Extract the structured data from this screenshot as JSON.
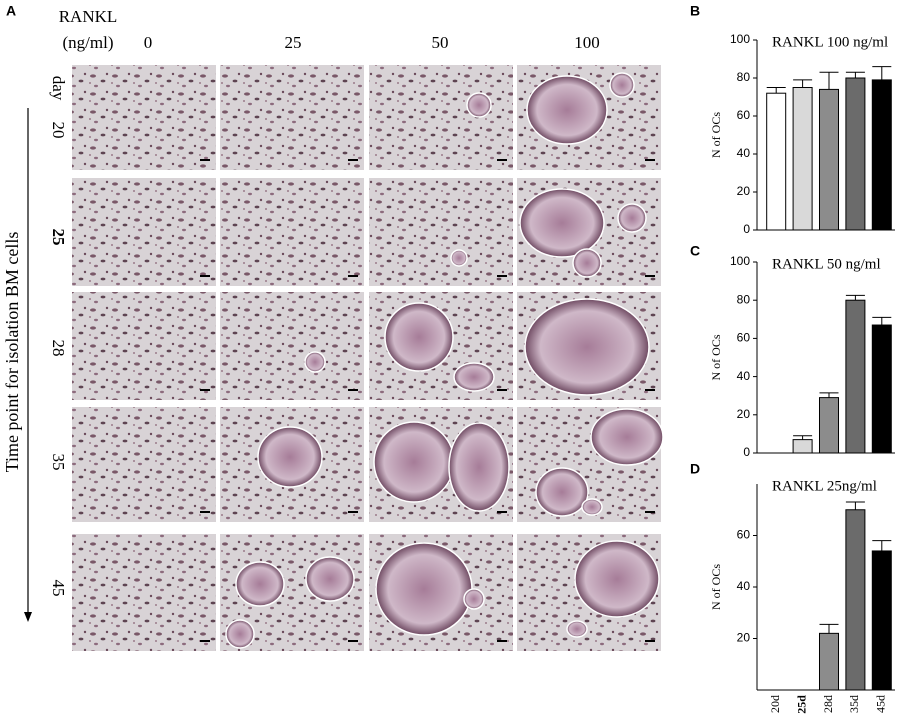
{
  "panel_a": {
    "label": "A",
    "column_header_title": [
      "RANKL",
      "(ng/ml)"
    ],
    "columns": [
      "0",
      "25",
      "50",
      "100"
    ],
    "row_header_title": "day",
    "rows": [
      "20",
      "25",
      "28",
      "35",
      "45"
    ],
    "row_colors": [
      "#000000",
      "#e8221d",
      "#000000",
      "#000000",
      "#000000"
    ],
    "row_axis_title": "Time point for isolation BM cells"
  },
  "chart_data": [
    {
      "type": "bar",
      "label": "B",
      "title": "RANKL 100 ng/ml",
      "y_label": "N of OCs",
      "categories": [
        null,
        null,
        null,
        null,
        null
      ],
      "values": [
        72,
        75,
        74,
        80,
        79
      ],
      "errors": [
        3,
        4,
        9,
        3,
        7
      ],
      "colors": [
        "#ffffff",
        "#d9d9d9",
        "#8c8c8c",
        "#6b6b6b",
        "#000000"
      ],
      "ylim": [
        0,
        100
      ],
      "yticks": [
        0,
        20,
        40,
        60,
        80,
        100
      ]
    },
    {
      "type": "bar",
      "label": "C",
      "title": "RANKL 50 ng/ml",
      "y_label": "N of OCs",
      "categories": [
        null,
        null,
        null,
        null,
        null
      ],
      "values": [
        0,
        7,
        29,
        80,
        67
      ],
      "errors": [
        0,
        2,
        2.5,
        2.5,
        4
      ],
      "colors": [
        "#ffffff",
        "#d9d9d9",
        "#8c8c8c",
        "#6b6b6b",
        "#000000"
      ],
      "ylim": [
        0,
        100
      ],
      "yticks": [
        0,
        20,
        40,
        60,
        80,
        100
      ]
    },
    {
      "type": "bar",
      "label": "D",
      "title": "RANKL 25ng/ml",
      "y_label": "N of OCs",
      "categories": [
        "20d",
        "25d",
        "28d",
        "35d",
        "45d"
      ],
      "category_colors": [
        "#000000",
        "#e8221d",
        "#000000",
        "#000000",
        "#000000"
      ],
      "values": [
        0,
        0,
        22,
        70,
        54
      ],
      "errors": [
        0,
        0,
        3.5,
        3,
        4
      ],
      "colors": [
        "#ffffff",
        "#d9d9d9",
        "#8c8c8c",
        "#6b6b6b",
        "#000000"
      ],
      "ylim": [
        0,
        80
      ],
      "yticks": [
        20,
        40,
        60
      ]
    }
  ]
}
